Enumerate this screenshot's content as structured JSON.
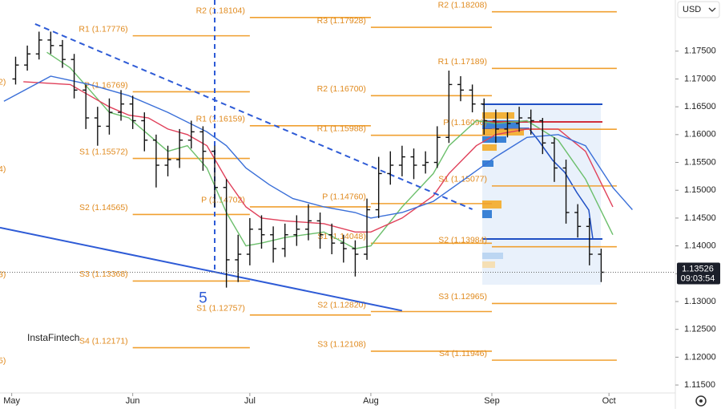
{
  "chart_data": {
    "type": "ohlc",
    "currency": "USD",
    "watermark": "InstaFintech",
    "color": "#111111",
    "xlim": [
      -3,
      170
    ],
    "xticks": [
      {
        "value": 0,
        "label": "May"
      },
      {
        "value": 31,
        "label": "Jun"
      },
      {
        "value": 61,
        "label": "Jul"
      },
      {
        "value": 92,
        "label": "Aug"
      },
      {
        "value": 123,
        "label": "Sep"
      },
      {
        "value": 153,
        "label": "Oct"
      }
    ],
    "ylim": [
      1.11357,
      1.18419
    ],
    "yticks": [
      {
        "value": 1.175,
        "label": "1.17500"
      },
      {
        "value": 1.17,
        "label": "1.17000"
      },
      {
        "value": 1.165,
        "label": "1.16500"
      },
      {
        "value": 1.16,
        "label": "1.16000"
      },
      {
        "value": 1.155,
        "label": "1.15500"
      },
      {
        "value": 1.15,
        "label": "1.15000"
      },
      {
        "value": 1.145,
        "label": "1.14500"
      },
      {
        "value": 1.14,
        "label": "1.14000"
      },
      {
        "value": 1.135,
        "label": "1.13500"
      },
      {
        "value": 1.13,
        "label": "1.13000"
      },
      {
        "value": 1.125,
        "label": "1.12500"
      },
      {
        "value": 1.12,
        "label": "1.12000"
      },
      {
        "value": 1.115,
        "label": "1.11500"
      }
    ],
    "x": [
      1,
      4,
      7,
      10,
      13,
      16,
      19,
      22,
      25,
      28,
      31,
      34,
      37,
      40,
      43,
      46,
      49,
      52,
      55,
      58,
      61,
      64,
      67,
      70,
      73,
      76,
      79,
      82,
      85,
      88,
      91,
      94,
      97,
      100,
      103,
      106,
      109,
      112,
      115,
      118,
      121,
      124,
      127,
      130,
      133,
      136,
      139,
      142,
      145,
      148,
      151
    ],
    "open": [
      1.17,
      1.1725,
      1.1745,
      1.177,
      1.176,
      1.1735,
      1.168,
      1.163,
      1.1615,
      1.164,
      1.1655,
      1.1625,
      1.159,
      1.1545,
      1.1555,
      1.159,
      1.1605,
      1.157,
      1.1505,
      1.1375,
      1.1385,
      1.143,
      1.142,
      1.1395,
      1.142,
      1.143,
      1.1445,
      1.142,
      1.1405,
      1.1395,
      1.1385,
      1.1465,
      1.153,
      1.1545,
      1.156,
      1.1545,
      1.155,
      1.1595,
      1.169,
      1.168,
      1.1655,
      1.1625,
      1.161,
      1.162,
      1.163,
      1.1625,
      1.1585,
      1.154,
      1.146,
      1.1435,
      1.1385
    ],
    "high": [
      1.174,
      1.176,
      1.1785,
      1.1785,
      1.177,
      1.1745,
      1.169,
      1.165,
      1.1665,
      1.168,
      1.167,
      1.164,
      1.16,
      1.158,
      1.161,
      1.1625,
      1.1615,
      1.158,
      1.152,
      1.142,
      1.145,
      1.1455,
      1.1435,
      1.144,
      1.1455,
      1.1475,
      1.146,
      1.144,
      1.142,
      1.141,
      1.1485,
      1.156,
      1.157,
      1.158,
      1.1575,
      1.157,
      1.1615,
      1.1715,
      1.1705,
      1.169,
      1.1665,
      1.1645,
      1.164,
      1.165,
      1.1645,
      1.163,
      1.1595,
      1.1555,
      1.1475,
      1.145,
      1.1395
    ],
    "low": [
      1.169,
      1.1715,
      1.1735,
      1.1745,
      1.172,
      1.1665,
      1.161,
      1.158,
      1.16,
      1.1625,
      1.161,
      1.157,
      1.1505,
      1.1525,
      1.154,
      1.1575,
      1.1535,
      1.147,
      1.1325,
      1.1335,
      1.1365,
      1.1395,
      1.137,
      1.138,
      1.14,
      1.141,
      1.1395,
      1.1385,
      1.137,
      1.1345,
      1.1375,
      1.145,
      1.151,
      1.1525,
      1.152,
      1.153,
      1.154,
      1.1585,
      1.166,
      1.164,
      1.16,
      1.1585,
      1.1595,
      1.1605,
      1.16,
      1.1565,
      1.1515,
      1.144,
      1.1415,
      1.1365,
      1.1335
    ],
    "close": [
      1.1725,
      1.1745,
      1.177,
      1.176,
      1.1735,
      1.168,
      1.163,
      1.1615,
      1.164,
      1.1655,
      1.1625,
      1.159,
      1.1545,
      1.1555,
      1.159,
      1.1605,
      1.157,
      1.1505,
      1.1375,
      1.1385,
      1.143,
      1.142,
      1.1395,
      1.142,
      1.143,
      1.1445,
      1.142,
      1.1405,
      1.1395,
      1.1385,
      1.1465,
      1.153,
      1.1545,
      1.156,
      1.1545,
      1.155,
      1.1595,
      1.169,
      1.168,
      1.1655,
      1.1625,
      1.161,
      1.162,
      1.163,
      1.1625,
      1.1585,
      1.154,
      1.146,
      1.1435,
      1.1385,
      1.13526
    ],
    "last_price": 1.13526,
    "countdown": "09:03:54",
    "moving_averages": [
      {
        "color": "#6cbf6c",
        "x": [
          9,
          15,
          20,
          25,
          30,
          35,
          40,
          45,
          50,
          55,
          60,
          64,
          70,
          80,
          88,
          92,
          100,
          108,
          112,
          119,
          124,
          132,
          140,
          147,
          154
        ],
        "values": [
          1.1748,
          1.172,
          1.168,
          1.164,
          1.163,
          1.16,
          1.157,
          1.158,
          1.154,
          1.146,
          1.14,
          1.1405,
          1.1415,
          1.1425,
          1.1395,
          1.14,
          1.147,
          1.153,
          1.158,
          1.1625,
          1.162,
          1.1625,
          1.159,
          1.152,
          1.142
        ]
      },
      {
        "color": "#e0405a",
        "x": [
          3,
          15,
          20,
          25,
          30,
          35,
          40,
          45,
          50,
          55,
          60,
          64,
          70,
          80,
          88,
          92,
          100,
          108,
          112,
          119,
          124,
          132,
          140,
          147,
          154
        ],
        "values": [
          1.1695,
          1.169,
          1.167,
          1.165,
          1.1635,
          1.163,
          1.161,
          1.16,
          1.158,
          1.152,
          1.147,
          1.145,
          1.1445,
          1.144,
          1.1425,
          1.1425,
          1.145,
          1.149,
          1.153,
          1.158,
          1.16,
          1.161,
          1.161,
          1.157,
          1.147
        ]
      },
      {
        "color": "#3a6fd8",
        "x": [
          -2,
          10,
          20,
          30,
          40,
          50,
          55,
          60,
          66,
          72,
          80,
          88,
          92,
          100,
          108,
          116,
          124,
          132,
          140,
          147,
          154,
          159
        ],
        "values": [
          1.166,
          1.1705,
          1.169,
          1.167,
          1.164,
          1.1605,
          1.158,
          1.154,
          1.151,
          1.1485,
          1.147,
          1.146,
          1.145,
          1.146,
          1.148,
          1.152,
          1.156,
          1.1595,
          1.16,
          1.158,
          1.1505,
          1.1465
        ]
      }
    ],
    "pivots": [
      {
        "label": "R1 (1.17776)",
        "value": 1.17776,
        "x": [
          31,
          61
        ]
      },
      {
        "label": "P (1.16769)",
        "value": 1.16769,
        "x": [
          31,
          61
        ]
      },
      {
        "label": "S1 (1.15572)",
        "value": 1.15572,
        "x": [
          31,
          61
        ]
      },
      {
        "label": "S2 (1.14565)",
        "value": 1.14565,
        "x": [
          31,
          61
        ]
      },
      {
        "label": "S3 (1.13368)",
        "value": 1.13368,
        "x": [
          31,
          61
        ]
      },
      {
        "label": "S4 (1.12171)",
        "value": 1.12171,
        "x": [
          31,
          61
        ]
      },
      {
        "label": "R2 (1.18104)",
        "value": 1.18104,
        "x": [
          61,
          92
        ]
      },
      {
        "label": "R1 (1.16159)",
        "value": 1.16159,
        "x": [
          61,
          92
        ]
      },
      {
        "label": "P (1.14702)",
        "value": 1.14702,
        "x": [
          61,
          92
        ]
      },
      {
        "label": "S1 (1.12757)",
        "value": 1.12757,
        "x": [
          61,
          92
        ]
      },
      {
        "label": "R3 (1.17928)",
        "value": 1.17928,
        "x": [
          92,
          123
        ]
      },
      {
        "label": "R2 (1.16700)",
        "value": 1.167,
        "x": [
          92,
          123
        ]
      },
      {
        "label": "R1 (1.15988)",
        "value": 1.15988,
        "x": [
          92,
          123
        ]
      },
      {
        "label": "P (1.14760)",
        "value": 1.1476,
        "x": [
          92,
          123
        ]
      },
      {
        "label": "S1 (1.14048)",
        "value": 1.14048,
        "x": [
          92,
          123
        ]
      },
      {
        "label": "S2 (1.12820)",
        "value": 1.1282,
        "x": [
          92,
          123
        ]
      },
      {
        "label": "S3 (1.12108)",
        "value": 1.12108,
        "x": [
          92,
          123
        ]
      },
      {
        "label": "R2 (1.18208)",
        "value": 1.18208,
        "x": [
          123,
          155
        ]
      },
      {
        "label": "R1 (1.17189)",
        "value": 1.17189,
        "x": [
          123,
          155
        ]
      },
      {
        "label": "P (1.16096)",
        "value": 1.16096,
        "x": [
          123,
          155
        ]
      },
      {
        "label": "S1 (1.15077)",
        "value": 1.15077,
        "x": [
          123,
          155
        ]
      },
      {
        "label": "S2 (1.13984)",
        "value": 1.13984,
        "x": [
          123,
          155
        ]
      },
      {
        "label": "S3 (1.12965)",
        "value": 1.12965,
        "x": [
          123,
          155
        ]
      },
      {
        "label": "S4 (1.11946)",
        "value": 1.11946,
        "x": [
          123,
          155
        ]
      }
    ],
    "edge_labels": [
      {
        "label": "2)",
        "value": 1.1694
      },
      {
        "label": "4)",
        "value": 1.15376
      },
      {
        "label": "3)",
        "value": 1.13481
      },
      {
        "label": "5)",
        "value": 1.11931
      }
    ],
    "trendlines": [
      {
        "color": "#2e5bd6",
        "dashed": true,
        "x": [
          6,
          118
        ],
        "values": [
          1.17988,
          1.14658
        ]
      },
      {
        "color": "#2e5bd6",
        "dashed": false,
        "x": [
          -3,
          100
        ],
        "values": [
          1.14328,
          1.12835
        ]
      }
    ],
    "vline": {
      "color": "#2e5bd6",
      "x": 52
    },
    "wave_label": {
      "label": "5",
      "x": 49,
      "value": 1.1305
    }
  }
}
